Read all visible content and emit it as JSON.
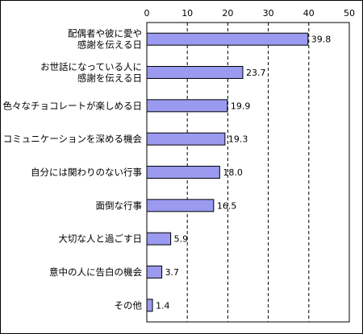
{
  "chart_data": {
    "type": "bar",
    "orientation": "horizontal",
    "title": "",
    "xlabel": "",
    "ylabel": "",
    "xlim": [
      0,
      50
    ],
    "x_ticks": [
      0,
      10,
      20,
      30,
      40,
      50
    ],
    "grid": "vertical dashed",
    "categories": [
      [
        "配偶者や彼に愛や",
        "感謝を伝える日"
      ],
      [
        "お世話になっている人に",
        "感謝を伝える日"
      ],
      [
        "色々なチョコレートが楽しめる日"
      ],
      [
        "コミュニケーションを深める機会"
      ],
      [
        "自分には関わりのない行事"
      ],
      [
        "面倒な行事"
      ],
      [
        "大切な人と過ごす日"
      ],
      [
        "意中の人に告白の機会"
      ],
      [
        "その他"
      ]
    ],
    "values": [
      39.8,
      23.7,
      19.9,
      19.3,
      18.0,
      16.5,
      5.9,
      3.7,
      1.4
    ],
    "value_labels": [
      "39.8",
      "23.7",
      "19.9",
      "19.3",
      "18.0",
      "16.5",
      "5.9",
      "3.7",
      "1.4"
    ],
    "colors": {
      "bar_fill": "#9a9af0",
      "bar_stroke": "#000000",
      "border": "#000000",
      "grid": "#000000"
    }
  }
}
